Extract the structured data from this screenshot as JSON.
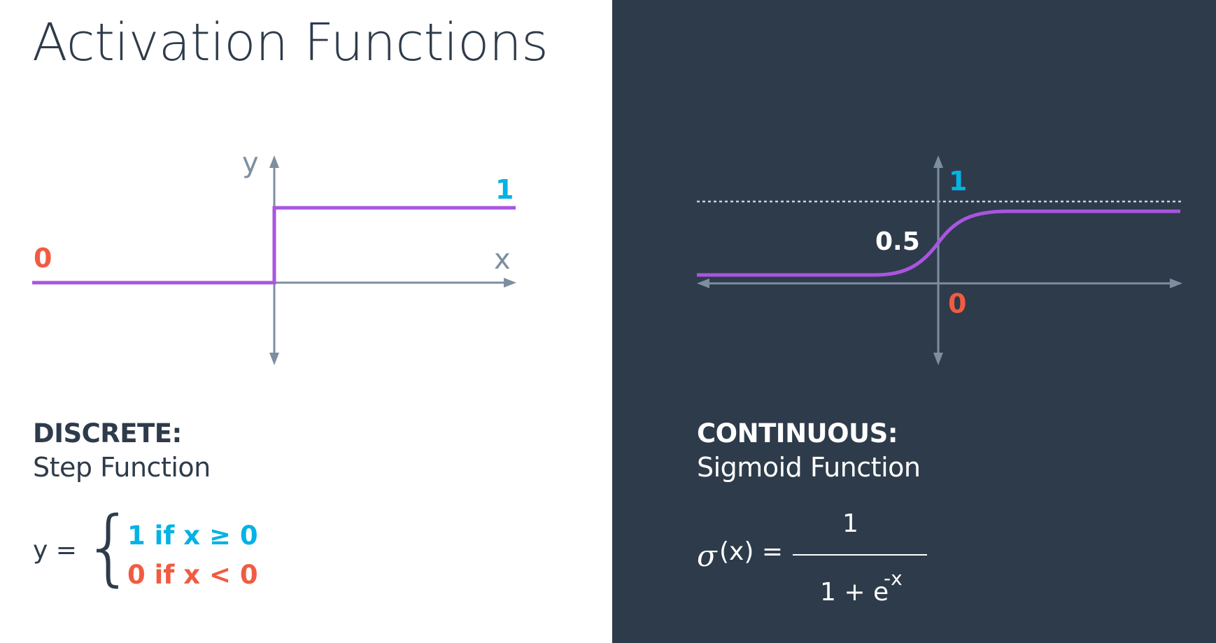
{
  "title": "Activation Functions",
  "colors": {
    "dark_bg": "#2e3b4a",
    "curve": "#a855e0",
    "axis": "#7d8ea0",
    "one": "#02b3e4",
    "zero": "#f15b42"
  },
  "left": {
    "graph": {
      "y_axis_label": "y",
      "x_axis_label": "x",
      "high_label": "1",
      "low_label": "0"
    },
    "heading": "DISCRETE:",
    "subheading": "Step Function",
    "formula": {
      "lhs": "y =",
      "brace": "{",
      "case_one": "1 if x  ≥ 0",
      "case_zero": "0 if x < 0"
    }
  },
  "right": {
    "graph": {
      "high_label": "1",
      "mid_label": "0.5",
      "low_label": "0"
    },
    "heading": "CONTINUOUS:",
    "subheading": "Sigmoid Function",
    "formula": {
      "lhs_symbol": "σ",
      "lhs_rest": "(x) =",
      "numerator": "1",
      "denominator_base": "1 + e",
      "denominator_exp": "-x"
    }
  }
}
